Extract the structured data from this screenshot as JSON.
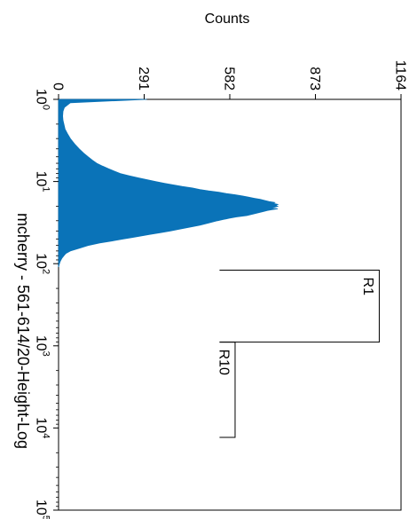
{
  "chart_data": {
    "type": "area",
    "orientation": "rotated-90-clockwise",
    "xlabel": "mcherry - 561-614/20-Height-Log",
    "ylabel": "Counts",
    "x_scale": "log",
    "xlim": [
      1,
      100000
    ],
    "ylim": [
      0,
      1164
    ],
    "x_ticks": [
      {
        "base": "10",
        "exp": "0"
      },
      {
        "base": "10",
        "exp": "1"
      },
      {
        "base": "10",
        "exp": "2"
      },
      {
        "base": "10",
        "exp": "3"
      },
      {
        "base": "10",
        "exp": "4"
      },
      {
        "base": "10",
        "exp": "5"
      }
    ],
    "y_ticks": [
      "0",
      "291",
      "582",
      "873",
      "1164"
    ],
    "fill_color": "#0a73b8",
    "series": [
      {
        "x": [
          1,
          1.1,
          1.25,
          1.4,
          1.6,
          1.8,
          2,
          2.3,
          2.6,
          3,
          3.5,
          4,
          4.5,
          5,
          5.5,
          6,
          6.5,
          7,
          7.5,
          8,
          8.5,
          9,
          9.5,
          10,
          10.5,
          11,
          11.5,
          12,
          12.5,
          13,
          13.5,
          14,
          14.5,
          15,
          15.5,
          16,
          16.5,
          17,
          17.5,
          18,
          18.5,
          19,
          19.5,
          20,
          20.5,
          21,
          21.5,
          22,
          22.5,
          23,
          24,
          25,
          26,
          27,
          28,
          29,
          30,
          32,
          34,
          36,
          38,
          40,
          42,
          44,
          46,
          48,
          50,
          53,
          56,
          60,
          65,
          70,
          75,
          80,
          85,
          90,
          95,
          100,
          110
        ],
        "values": [
          300,
          40,
          20,
          15,
          14,
          15,
          18,
          22,
          30,
          40,
          55,
          70,
          85,
          100,
          115,
          130,
          150,
          170,
          190,
          210,
          240,
          270,
          300,
          330,
          360,
          390,
          420,
          455,
          480,
          510,
          545,
          570,
          600,
          625,
          645,
          665,
          685,
          700,
          715,
          735,
          730,
          745,
          738,
          745,
          735,
          720,
          745,
          725,
          710,
          700,
          680,
          660,
          640,
          605,
          580,
          560,
          540,
          510,
          480,
          445,
          410,
          380,
          345,
          310,
          280,
          250,
          220,
          180,
          140,
          100,
          70,
          40,
          25,
          18,
          12,
          8,
          5,
          3,
          0
        ]
      }
    ],
    "gates": [
      {
        "label": "R1",
        "x_range": [
          120,
          900
        ],
        "level": 1090
      },
      {
        "label": "R10",
        "x_range": [
          900,
          13000
        ],
        "level": 600
      }
    ]
  }
}
